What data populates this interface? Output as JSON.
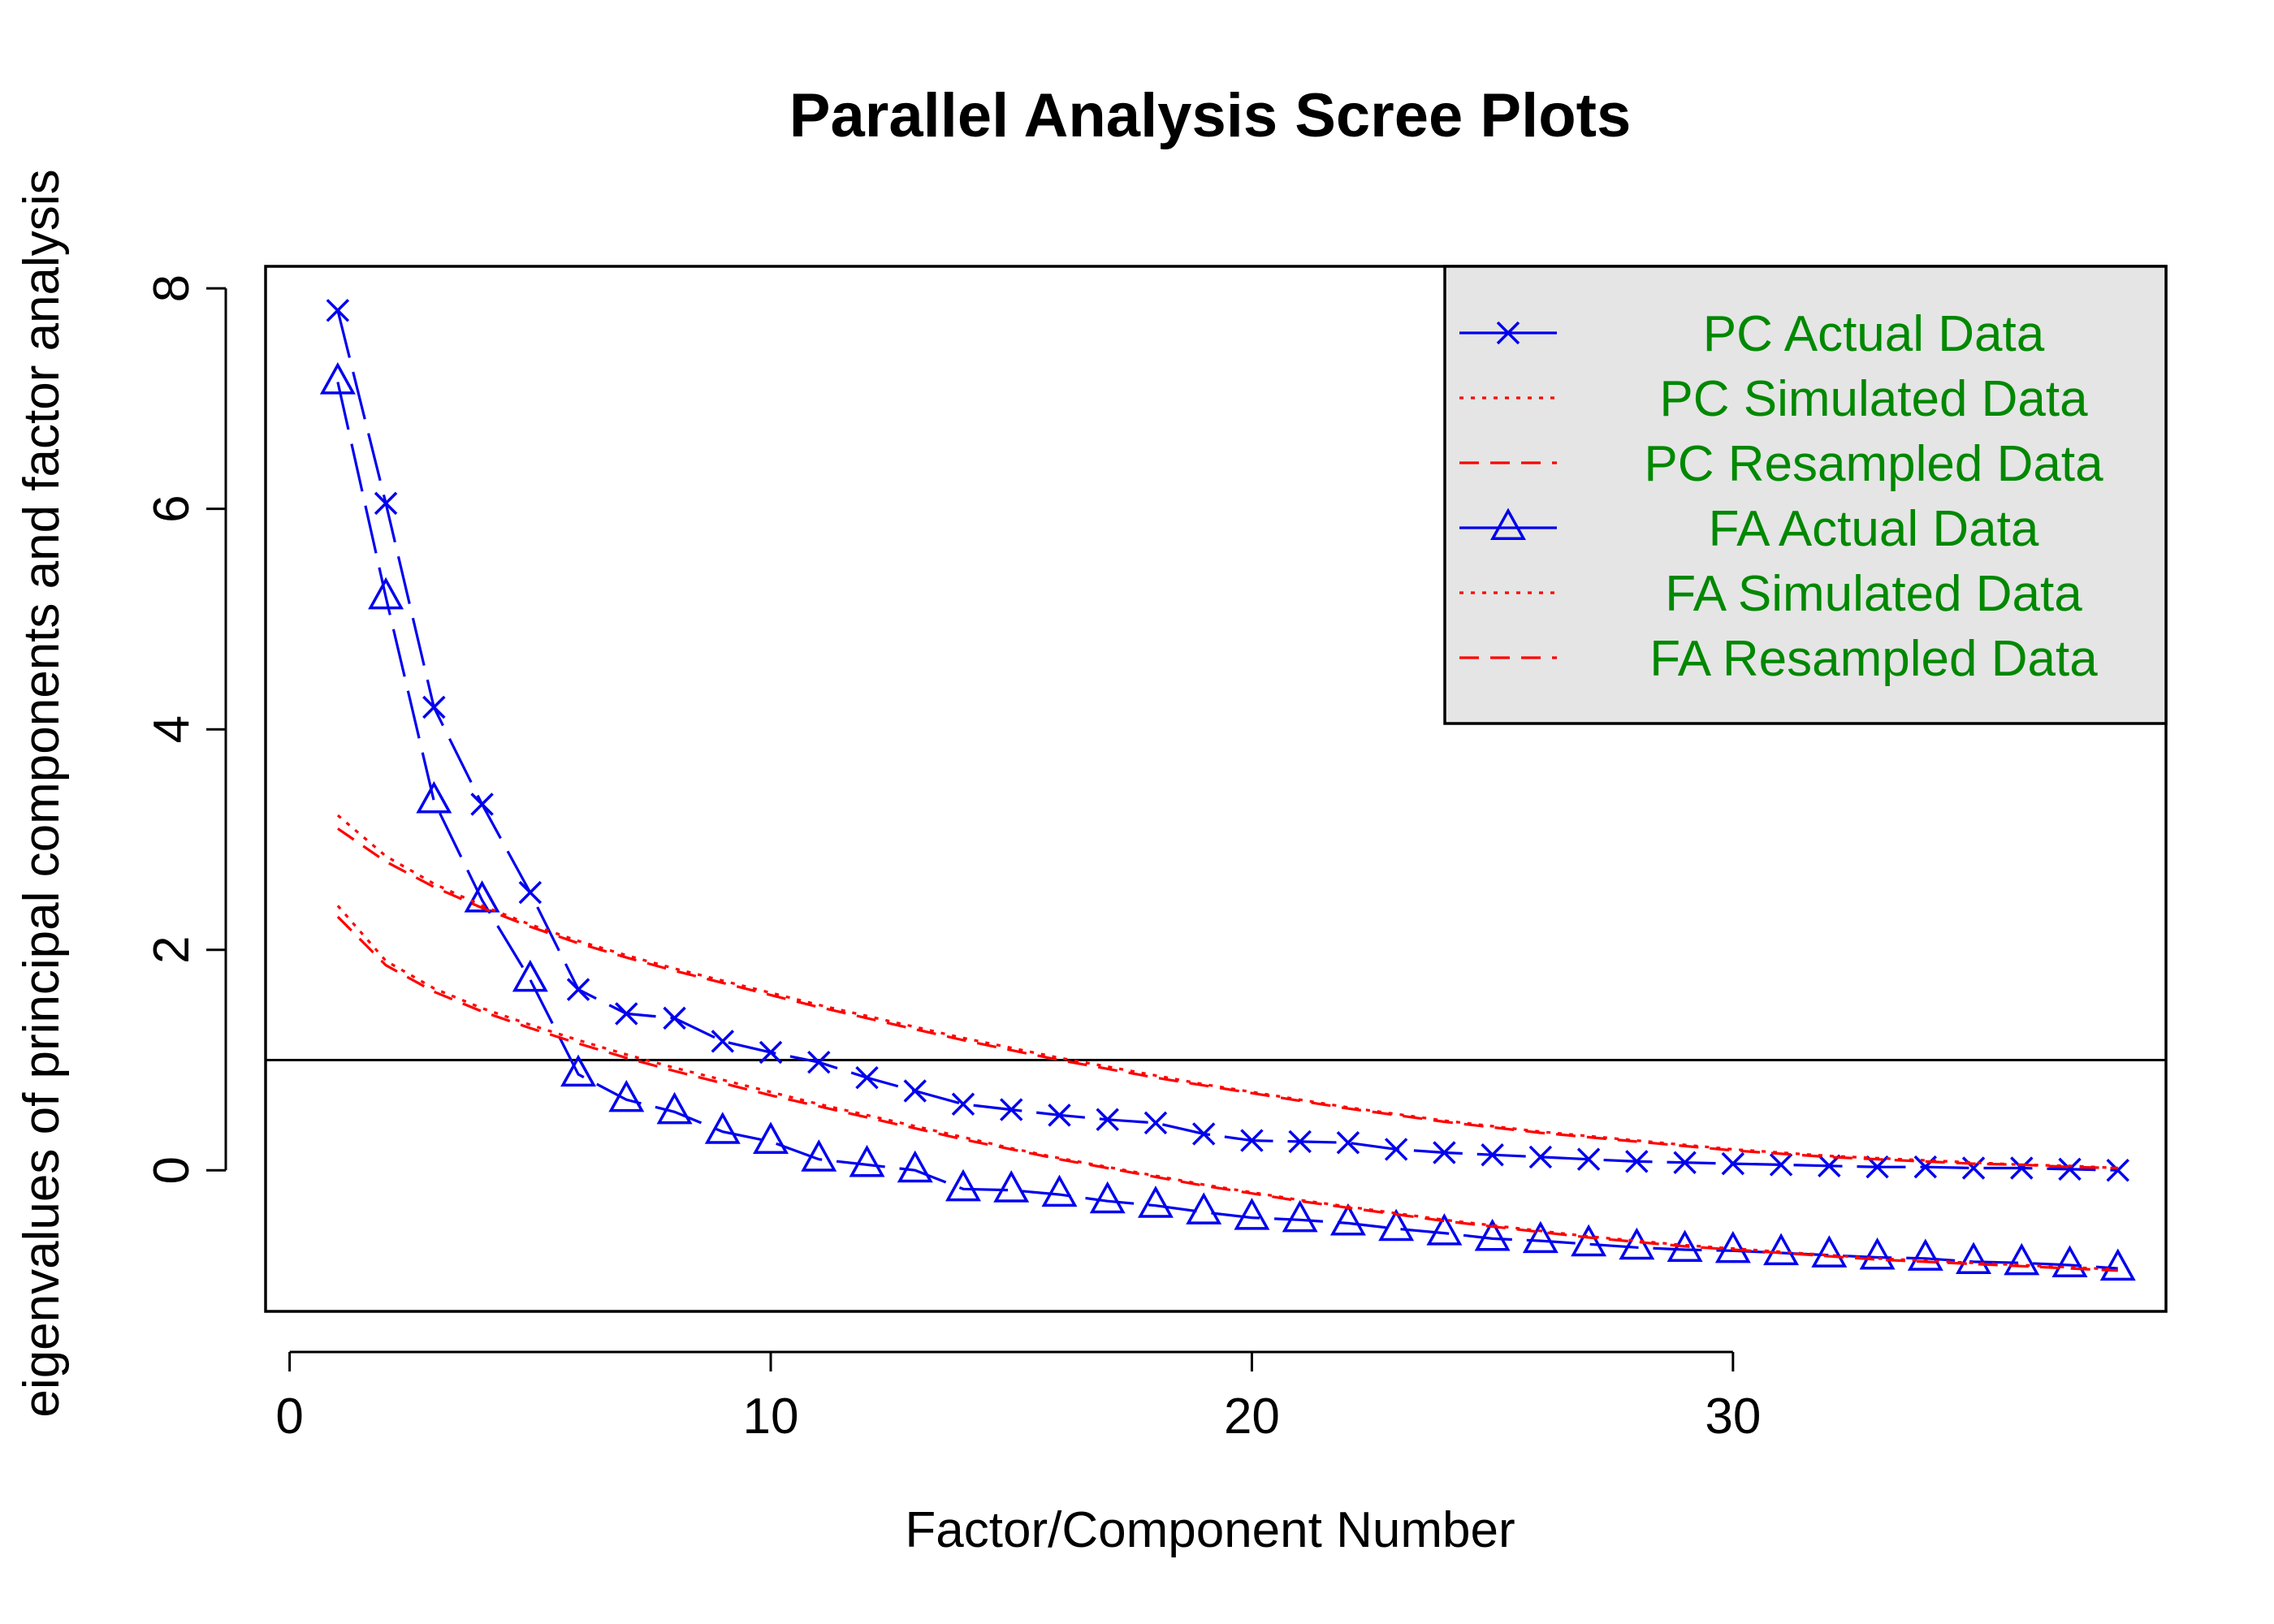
{
  "chart_data": {
    "type": "line",
    "title": "Parallel Analysis Scree Plots",
    "xlabel": "Factor/Component Number",
    "ylabel": "eigenvalues of principal components and factor analysis",
    "xlim": [
      -0.5,
      39
    ],
    "ylim": [
      -1.28,
      8.2
    ],
    "x_ticks": [
      0,
      10,
      20,
      30
    ],
    "x_tick_labels": [
      "0",
      "10",
      "20",
      "30"
    ],
    "y_ticks": [
      0,
      2,
      4,
      6,
      8
    ],
    "y_tick_labels": [
      "0",
      "2",
      "4",
      "6",
      "8"
    ],
    "reference_line": 1,
    "grid": false,
    "legend_position": "top-right",
    "colors": {
      "actual": "#0000ee",
      "simulated": "#ff0000",
      "legend_text": "#008800",
      "legend_bg": "#e5e5e5",
      "axis": "#000000"
    },
    "legend": [
      {
        "label": "PC  Actual Data",
        "color": "#0000ee",
        "style": "longdash",
        "marker": "x-mark"
      },
      {
        "label": "PC  Simulated Data",
        "color": "#ff0000",
        "style": "dotted",
        "marker": "none"
      },
      {
        "label": "PC  Resampled Data",
        "color": "#ff0000",
        "style": "dashed",
        "marker": "none"
      },
      {
        "label": "FA  Actual Data",
        "color": "#0000ee",
        "style": "longdash",
        "marker": "triangle"
      },
      {
        "label": "FA  Simulated Data",
        "color": "#ff0000",
        "style": "dotted",
        "marker": "none"
      },
      {
        "label": "FA  Resampled Data",
        "color": "#ff0000",
        "style": "dashed",
        "marker": "none"
      }
    ],
    "x": [
      1,
      2,
      3,
      4,
      5,
      6,
      7,
      8,
      9,
      10,
      11,
      12,
      13,
      14,
      15,
      16,
      17,
      18,
      19,
      20,
      21,
      22,
      23,
      24,
      25,
      26,
      27,
      28,
      29,
      30,
      31,
      32,
      33,
      34,
      35,
      36,
      37,
      38
    ],
    "series": [
      {
        "id": "pc_actual",
        "name": "PC  Actual Data",
        "color": "#0000ee",
        "style": "longdash",
        "marker": "x-mark",
        "values": [
          7.8,
          6.05,
          4.2,
          3.32,
          2.52,
          1.64,
          1.42,
          1.38,
          1.17,
          1.07,
          0.98,
          0.84,
          0.72,
          0.6,
          0.55,
          0.5,
          0.46,
          0.43,
          0.33,
          0.27,
          0.26,
          0.25,
          0.19,
          0.16,
          0.14,
          0.12,
          0.1,
          0.08,
          0.07,
          0.06,
          0.05,
          0.04,
          0.03,
          0.03,
          0.02,
          0.02,
          0.01,
          0.0
        ]
      },
      {
        "id": "fa_actual",
        "name": "FA  Actual Data",
        "color": "#0000ee",
        "style": "longdash",
        "marker": "triangle",
        "values": [
          7.15,
          5.2,
          3.35,
          2.45,
          1.73,
          0.87,
          0.64,
          0.53,
          0.35,
          0.26,
          0.1,
          0.05,
          0.0,
          -0.17,
          -0.18,
          -0.22,
          -0.28,
          -0.32,
          -0.38,
          -0.43,
          -0.45,
          -0.48,
          -0.53,
          -0.57,
          -0.62,
          -0.64,
          -0.67,
          -0.7,
          -0.72,
          -0.73,
          -0.75,
          -0.77,
          -0.79,
          -0.8,
          -0.83,
          -0.84,
          -0.86,
          -0.89
        ]
      },
      {
        "id": "pc_simulated",
        "name": "PC  Simulated Data",
        "color": "#ff0000",
        "style": "dotted",
        "marker": "none",
        "values": [
          3.22,
          2.85,
          2.6,
          2.4,
          2.23,
          2.08,
          1.95,
          1.83,
          1.72,
          1.61,
          1.5,
          1.4,
          1.3,
          1.2,
          1.11,
          1.02,
          0.94,
          0.86,
          0.78,
          0.71,
          0.64,
          0.57,
          0.51,
          0.45,
          0.4,
          0.35,
          0.31,
          0.27,
          0.23,
          0.19,
          0.16,
          0.13,
          0.11,
          0.09,
          0.07,
          0.05,
          0.04,
          0.02
        ]
      },
      {
        "id": "pc_resampled",
        "name": "PC  Resampled Data",
        "color": "#ff0000",
        "style": "dashed",
        "marker": "none",
        "values": [
          3.1,
          2.8,
          2.57,
          2.38,
          2.21,
          2.06,
          1.93,
          1.81,
          1.7,
          1.59,
          1.48,
          1.38,
          1.28,
          1.18,
          1.09,
          1.0,
          0.92,
          0.84,
          0.77,
          0.7,
          0.63,
          0.56,
          0.5,
          0.44,
          0.39,
          0.34,
          0.3,
          0.26,
          0.22,
          0.18,
          0.15,
          0.12,
          0.1,
          0.08,
          0.06,
          0.05,
          0.03,
          0.02
        ]
      },
      {
        "id": "fa_simulated",
        "name": "FA  Simulated Data",
        "color": "#ff0000",
        "style": "dotted",
        "marker": "none",
        "values": [
          2.4,
          1.9,
          1.65,
          1.47,
          1.32,
          1.18,
          1.05,
          0.93,
          0.82,
          0.71,
          0.6,
          0.5,
          0.4,
          0.3,
          0.2,
          0.11,
          0.03,
          -0.05,
          -0.13,
          -0.2,
          -0.27,
          -0.33,
          -0.39,
          -0.45,
          -0.5,
          -0.55,
          -0.6,
          -0.64,
          -0.68,
          -0.71,
          -0.74,
          -0.77,
          -0.8,
          -0.82,
          -0.84,
          -0.86,
          -0.88,
          -0.9
        ]
      },
      {
        "id": "fa_resampled",
        "name": "FA  Resampled Data",
        "color": "#ff0000",
        "style": "dashed",
        "marker": "none",
        "values": [
          2.3,
          1.86,
          1.62,
          1.44,
          1.29,
          1.15,
          1.02,
          0.9,
          0.79,
          0.68,
          0.58,
          0.48,
          0.38,
          0.28,
          0.19,
          0.1,
          0.02,
          -0.06,
          -0.14,
          -0.21,
          -0.28,
          -0.34,
          -0.4,
          -0.46,
          -0.51,
          -0.56,
          -0.61,
          -0.65,
          -0.69,
          -0.72,
          -0.75,
          -0.78,
          -0.81,
          -0.83,
          -0.85,
          -0.87,
          -0.89,
          -0.91
        ]
      }
    ]
  }
}
